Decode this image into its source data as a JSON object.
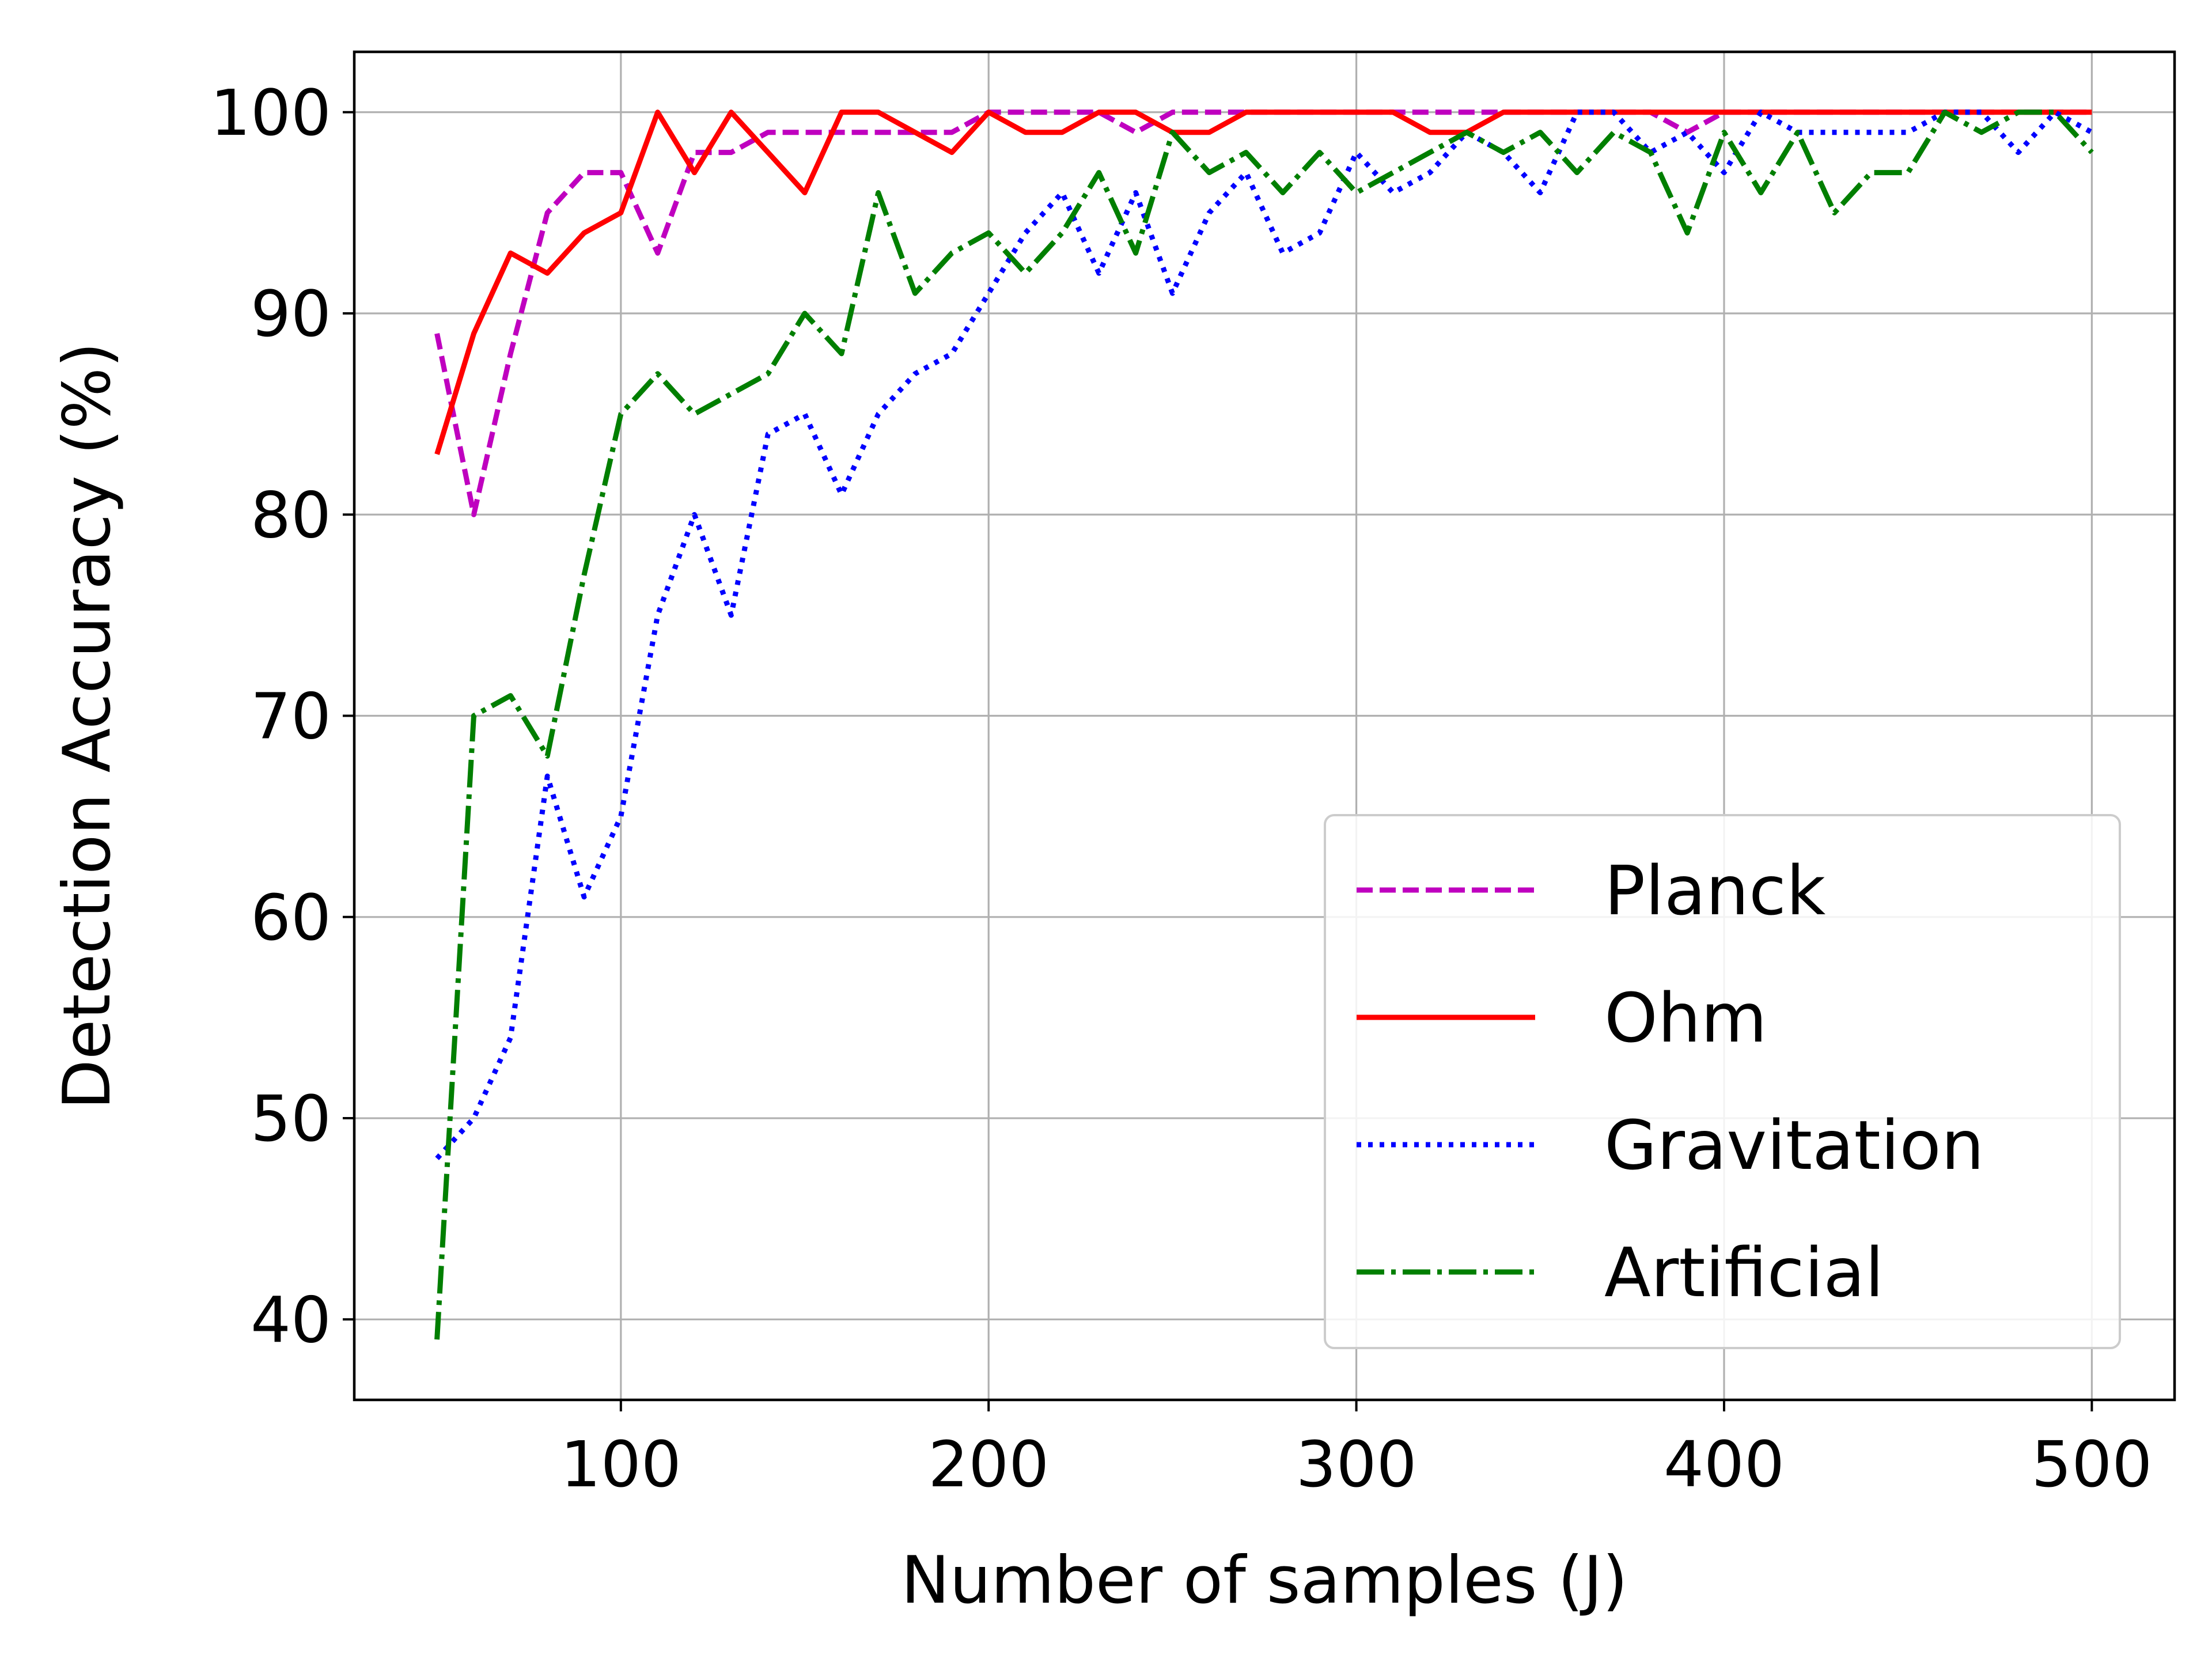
{
  "chart_data": {
    "type": "line",
    "title": "",
    "xlabel": "Number of samples (J)",
    "ylabel": "Detection Accuracy (%)",
    "xlim": [
      27.5,
      522.5
    ],
    "ylim": [
      36,
      103
    ],
    "xticks": [
      100,
      200,
      300,
      400,
      500
    ],
    "yticks": [
      40,
      50,
      60,
      70,
      80,
      90,
      100
    ],
    "grid": true,
    "legend_position": "lower-right",
    "x": [
      50,
      60,
      70,
      80,
      90,
      100,
      110,
      120,
      130,
      140,
      150,
      160,
      170,
      180,
      190,
      200,
      210,
      220,
      230,
      240,
      250,
      260,
      270,
      280,
      290,
      300,
      310,
      320,
      330,
      340,
      350,
      360,
      370,
      380,
      390,
      400,
      410,
      420,
      430,
      440,
      450,
      460,
      470,
      480,
      490,
      500
    ],
    "series": [
      {
        "name": "Planck",
        "color": "#bf00bf",
        "style": "dashed",
        "values": [
          89,
          80,
          88,
          95,
          97,
          97,
          93,
          98,
          98,
          99,
          99,
          99,
          99,
          99,
          99,
          100,
          100,
          100,
          100,
          99,
          100,
          100,
          100,
          100,
          100,
          100,
          100,
          100,
          100,
          100,
          100,
          100,
          100,
          100,
          99,
          100,
          100,
          100,
          100,
          100,
          100,
          100,
          100,
          100,
          100,
          100
        ]
      },
      {
        "name": "Ohm",
        "color": "#ff0000",
        "style": "solid",
        "values": [
          83,
          89,
          93,
          92,
          94,
          95,
          100,
          97,
          100,
          98,
          96,
          100,
          100,
          99,
          98,
          100,
          99,
          99,
          100,
          100,
          99,
          99,
          100,
          100,
          100,
          100,
          100,
          99,
          99,
          100,
          100,
          100,
          100,
          100,
          100,
          100,
          100,
          100,
          100,
          100,
          100,
          100,
          100,
          100,
          100,
          100
        ]
      },
      {
        "name": "Gravitation",
        "color": "#0000ff",
        "style": "dotted",
        "values": [
          48,
          50,
          54,
          67,
          61,
          65,
          75,
          80,
          75,
          84,
          85,
          81,
          85,
          87,
          88,
          91,
          94,
          96,
          92,
          96,
          91,
          95,
          97,
          93,
          94,
          98,
          96,
          97,
          99,
          98,
          96,
          100,
          100,
          98,
          99,
          97,
          100,
          99,
          99,
          99,
          99,
          100,
          100,
          98,
          100,
          99
        ]
      },
      {
        "name": "Artificial",
        "color": "#007f00",
        "style": "dashdot",
        "values": [
          39,
          70,
          71,
          68,
          77,
          85,
          87,
          85,
          86,
          87,
          90,
          88,
          96,
          91,
          93,
          94,
          92,
          94,
          97,
          93,
          99,
          97,
          98,
          96,
          98,
          96,
          97,
          98,
          99,
          98,
          99,
          97,
          99,
          98,
          94,
          99,
          96,
          99,
          95,
          97,
          97,
          100,
          99,
          100,
          100,
          98
        ]
      }
    ]
  }
}
